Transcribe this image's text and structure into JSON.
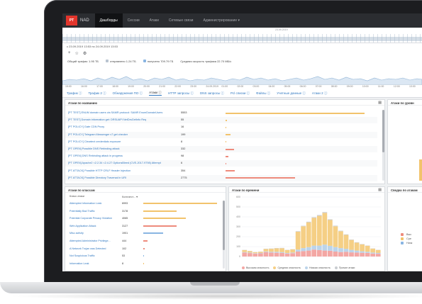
{
  "app": {
    "logo": "PT",
    "product": "NAD",
    "nav": [
      {
        "label": "Дашборды",
        "active": true
      },
      {
        "label": "Сессии",
        "active": false
      },
      {
        "label": "Атаки",
        "active": false
      },
      {
        "label": "Сетевые связи",
        "active": false
      },
      {
        "label": "Администрирование ▾",
        "active": false
      }
    ]
  },
  "timeline": {
    "date_label": "23.09.2019",
    "period": "с 23.09.2019 13:53 по 24.09.2019 13:53"
  },
  "controls": {
    "icons": [
      "add-icon",
      "star-icon",
      "gear-icon"
    ]
  },
  "traffic": {
    "total": "Общий трафик: 1.95 ТБ",
    "sent": "отправлено 1.24 ТБ",
    "received": "получено 709.79 ГБ",
    "avg_speed": "Средняя скорость трафика 22.70 МБ/с",
    "colors": {
      "sent": "#b9c4d0",
      "received": "#89b5e2"
    },
    "time_ticks": [
      "15:00",
      "16:00",
      "17:00",
      "18:00",
      "19:00",
      "20:00",
      "21:00",
      "22:00",
      "23:00",
      "24.09.2019",
      "01:00",
      "02:00",
      "03:00",
      "04:00",
      "05:00",
      "06:00",
      "07:00",
      "08:00",
      "09:00",
      "10:00",
      "11:00",
      "12:00",
      "13:00"
    ]
  },
  "tabs": [
    {
      "label": "Трафик",
      "active": false
    },
    {
      "label": "Трафик 2",
      "active": false
    },
    {
      "label": "Обнаружения ПО",
      "active": false
    },
    {
      "label": "Атаки",
      "active": true
    },
    {
      "label": "HTTP запросы",
      "active": false
    },
    {
      "label": "DNS запросы",
      "active": false
    },
    {
      "label": "Pcl списки",
      "active": false
    },
    {
      "label": "Файлы",
      "active": false
    },
    {
      "label": "Учетные данные",
      "active": false
    },
    {
      "label": "Атаки 2",
      "active": false
    }
  ],
  "panels": {
    "attacks_by_name": {
      "title": "Атаки по названию",
      "rows": [
        {
          "name": "[PT TEST] ENUM domain users via SAMR protocol: SAMR EnumDomainUsers",
          "count": "5553",
          "fraction": 0.98,
          "color": "#f2c36c"
        },
        {
          "name": "[PT TEST] Domain information get: DRSUAPI NetDrsGetInfo Req",
          "count": "55",
          "fraction": 0.01,
          "color": "#f2c36c"
        },
        {
          "name": "[PT POLICY] Gate CDN Proxy",
          "count": "16",
          "fraction": 0.005,
          "color": "#f2c36c"
        },
        {
          "name": "[PT POLICY] Telegram Messenger v7 get checker",
          "count": "199",
          "fraction": 0.035,
          "color": "#f2c36c"
        },
        {
          "name": "[PT POLICY] Cleartext credentials exposure",
          "count": "8",
          "fraction": 0.003,
          "color": "#f2c36c"
        },
        {
          "name": "[PT OPEN] Possible DNS Rebinding attack",
          "count": "332",
          "fraction": 0.06,
          "color": "#ee8b7c"
        },
        {
          "name": "[PT OPEN] DNS Rebinding attack in progress",
          "count": "98",
          "fraction": 0.018,
          "color": "#ee8b7c"
        },
        {
          "name": "[PT OPEN] Apache2 <2.2.34 <2.4.27 OptionsBleed (CVE-2017-9798) Attempt",
          "count": "6",
          "fraction": 0.002,
          "color": "#ee8b7c"
        },
        {
          "name": "[PT ATTACK] Possible HTTP CRLF Header Injection",
          "count": "354",
          "fraction": 0.065,
          "color": "#ee8b7c"
        },
        {
          "name": "[PT ATTACK] Possible Directory Traversal in URI",
          "count": "2775",
          "fraction": 0.49,
          "color": "#ee8b7c"
        }
      ]
    },
    "attacks_by_severity": {
      "title": "Атаки по уровн"
    },
    "attacks_by_class": {
      "title": "Атаки по классам",
      "col_class": "Класс атаки",
      "col_count": "Количест... ▾",
      "rows": [
        {
          "name": "Attempted Information Leak",
          "count": "6993",
          "fraction": 1.0,
          "color": "#f2c36c"
        },
        {
          "name": "Potentially Bad Traffic",
          "count": "3178",
          "fraction": 0.45,
          "color": "#f2c36c"
        },
        {
          "name": "Potential Corporate Privacy Violation",
          "count": "4065",
          "fraction": 0.58,
          "color": "#f2c36c"
        },
        {
          "name": "Web Application Attack",
          "count": "3127",
          "fraction": 0.45,
          "color": "#ee8b7c"
        },
        {
          "name": "Misc activity",
          "count": "1901",
          "fraction": 0.27,
          "color": "#89b5e2"
        },
        {
          "name": "Attempted Administrator Privilege...",
          "count": "444",
          "fraction": 0.06,
          "color": "#ee8b7c"
        },
        {
          "name": "A Network Trojan was Detected",
          "count": "102",
          "fraction": 0.015,
          "color": "#ee8b7c"
        },
        {
          "name": "Not Suspicious Traffic",
          "count": "53",
          "fraction": 0.008,
          "color": "#89b5e2"
        },
        {
          "name": "Information Leak",
          "count": "8",
          "fraction": 0.002,
          "color": "#f2c36c"
        }
      ]
    },
    "attacks_by_time": {
      "title": "Атаки по времени",
      "y_ticks": [
        "0",
        "100",
        "200",
        "300",
        "400",
        "500",
        "600"
      ],
      "legend": [
        {
          "label": "Высокая опасность",
          "color": "#f3a7a4"
        },
        {
          "label": "Средняя опасность",
          "color": "#f5cf85"
        },
        {
          "label": "Низкая опасность",
          "color": "#bcd4ea"
        },
        {
          "label": "Прочие атаки",
          "color": "#c8ccd1"
        }
      ]
    },
    "summary": {
      "title": "Сводка по атакам",
      "legend": [
        {
          "label": "Выс",
          "color": "#ee8b7c"
        },
        {
          "label": "Сре",
          "color": "#f2c36c"
        },
        {
          "label": "Низк",
          "color": "#89b5e2"
        }
      ]
    }
  },
  "chart_data": {
    "type": "bar",
    "title": "Атаки по времени",
    "ylim": [
      0,
      600
    ],
    "series": [
      {
        "name": "Высокая опасность",
        "values": [
          40,
          35,
          30,
          32,
          45,
          40,
          38,
          36,
          30,
          34,
          50,
          55,
          60,
          70,
          65,
          60,
          58,
          50,
          45,
          48,
          42,
          40,
          38,
          36,
          30,
          28
        ]
      },
      {
        "name": "Средняя опасность",
        "values": [
          20,
          15,
          10,
          12,
          25,
          30,
          35,
          40,
          30,
          32,
          180,
          220,
          250,
          280,
          300,
          320,
          260,
          210,
          170,
          140,
          100,
          80,
          70,
          60,
          40,
          30
        ]
      },
      {
        "name": "Низкая опасность",
        "values": [
          5,
          5,
          4,
          4,
          6,
          8,
          10,
          8,
          6,
          6,
          20,
          30,
          35,
          40,
          45,
          60,
          50,
          45,
          40,
          30,
          25,
          20,
          15,
          12,
          10,
          8
        ]
      },
      {
        "name": "Прочие атаки",
        "values": [
          2,
          2,
          2,
          2,
          3,
          3,
          3,
          3,
          2,
          2,
          5,
          5,
          6,
          6,
          8,
          8,
          7,
          6,
          5,
          5,
          4,
          4,
          3,
          3,
          2,
          2
        ]
      }
    ]
  }
}
